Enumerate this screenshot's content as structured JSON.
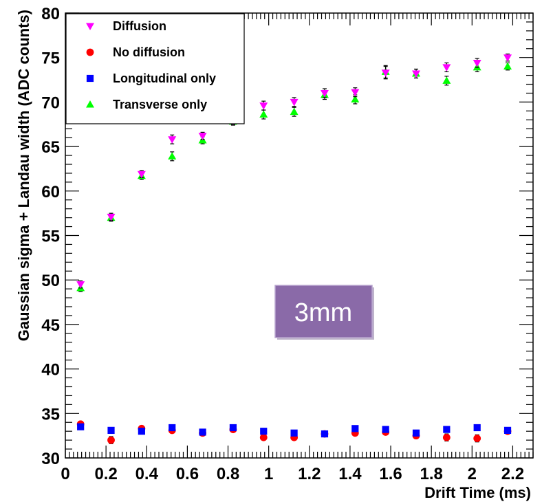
{
  "chart_data": {
    "type": "scatter",
    "xlabel": "Drift Time (ms)",
    "ylabel": "Gaussian sigma + Landau width (ADC counts)",
    "xlim": [
      0,
      2.3
    ],
    "ylim": [
      30,
      80
    ],
    "x_ticks": [
      "0",
      "0.2",
      "0.4",
      "0.6",
      "0.8",
      "1",
      "1.2",
      "1.4",
      "1.6",
      "1.8",
      "2",
      "2.2"
    ],
    "y_ticks": [
      "30",
      "35",
      "40",
      "45",
      "50",
      "55",
      "60",
      "65",
      "70",
      "75",
      "80"
    ],
    "grid": false,
    "legend_position": "top-left",
    "annotation": "3mm",
    "series": [
      {
        "name": "Diffusion",
        "marker": "triangle-down",
        "color": "#ff00ff",
        "points": [
          {
            "x": 0.075,
            "y": 49.5,
            "err": 0.4
          },
          {
            "x": 0.225,
            "y": 57.1,
            "err": 0.4
          },
          {
            "x": 0.375,
            "y": 61.9,
            "err": 0.4
          },
          {
            "x": 0.525,
            "y": 65.8,
            "err": 0.5
          },
          {
            "x": 0.675,
            "y": 66.2,
            "err": 0.4
          },
          {
            "x": 0.825,
            "y": 67.9,
            "err": 0.4
          },
          {
            "x": 0.975,
            "y": 69.6,
            "err": 0.5
          },
          {
            "x": 1.125,
            "y": 70.0,
            "err": 0.5
          },
          {
            "x": 1.275,
            "y": 71.0,
            "err": 0.5
          },
          {
            "x": 1.425,
            "y": 71.1,
            "err": 0.5
          },
          {
            "x": 1.575,
            "y": 73.3,
            "err": 0.7
          },
          {
            "x": 1.725,
            "y": 73.2,
            "err": 0.5
          },
          {
            "x": 1.875,
            "y": 73.9,
            "err": 0.5
          },
          {
            "x": 2.025,
            "y": 74.4,
            "err": 0.5
          },
          {
            "x": 2.175,
            "y": 75.0,
            "err": 0.4
          }
        ]
      },
      {
        "name": "No diffusion",
        "marker": "circle",
        "color": "#ff0000",
        "points": [
          {
            "x": 0.075,
            "y": 33.8,
            "err": 0.3
          },
          {
            "x": 0.225,
            "y": 32.0,
            "err": 0.4
          },
          {
            "x": 0.375,
            "y": 33.3,
            "err": 0.3
          },
          {
            "x": 0.525,
            "y": 33.1,
            "err": 0.3
          },
          {
            "x": 0.675,
            "y": 32.8,
            "err": 0.3
          },
          {
            "x": 0.825,
            "y": 33.2,
            "err": 0.3
          },
          {
            "x": 0.975,
            "y": 32.3,
            "err": 0.3
          },
          {
            "x": 1.125,
            "y": 32.3,
            "err": 0.3
          },
          {
            "x": 1.275,
            "y": 32.7,
            "err": 0.3
          },
          {
            "x": 1.425,
            "y": 32.8,
            "err": 0.3
          },
          {
            "x": 1.575,
            "y": 32.9,
            "err": 0.3
          },
          {
            "x": 1.725,
            "y": 32.5,
            "err": 0.3
          },
          {
            "x": 1.875,
            "y": 32.3,
            "err": 0.4
          },
          {
            "x": 2.025,
            "y": 32.2,
            "err": 0.4
          },
          {
            "x": 2.175,
            "y": 33.0,
            "err": 0.3
          }
        ]
      },
      {
        "name": "Longitudinal only",
        "marker": "square",
        "color": "#0000ff",
        "points": [
          {
            "x": 0.075,
            "y": 33.5,
            "err": 0.3
          },
          {
            "x": 0.225,
            "y": 33.1,
            "err": 0.3
          },
          {
            "x": 0.375,
            "y": 33.0,
            "err": 0.3
          },
          {
            "x": 0.525,
            "y": 33.4,
            "err": 0.3
          },
          {
            "x": 0.675,
            "y": 32.9,
            "err": 0.3
          },
          {
            "x": 0.825,
            "y": 33.4,
            "err": 0.3
          },
          {
            "x": 0.975,
            "y": 33.0,
            "err": 0.3
          },
          {
            "x": 1.125,
            "y": 32.8,
            "err": 0.3
          },
          {
            "x": 1.275,
            "y": 32.7,
            "err": 0.3
          },
          {
            "x": 1.425,
            "y": 33.3,
            "err": 0.3
          },
          {
            "x": 1.575,
            "y": 33.2,
            "err": 0.3
          },
          {
            "x": 1.725,
            "y": 32.8,
            "err": 0.3
          },
          {
            "x": 1.875,
            "y": 33.2,
            "err": 0.3
          },
          {
            "x": 2.025,
            "y": 33.4,
            "err": 0.3
          },
          {
            "x": 2.175,
            "y": 33.1,
            "err": 0.3
          }
        ]
      },
      {
        "name": "Transverse only",
        "marker": "triangle-up",
        "color": "#00ff00",
        "points": [
          {
            "x": 0.075,
            "y": 49.1,
            "err": 0.4
          },
          {
            "x": 0.225,
            "y": 57.0,
            "err": 0.4
          },
          {
            "x": 0.375,
            "y": 61.7,
            "err": 0.4
          },
          {
            "x": 0.525,
            "y": 63.9,
            "err": 0.5
          },
          {
            "x": 0.675,
            "y": 65.7,
            "err": 0.4
          },
          {
            "x": 0.825,
            "y": 67.8,
            "err": 0.4
          },
          {
            "x": 0.975,
            "y": 68.6,
            "err": 0.5
          },
          {
            "x": 1.125,
            "y": 68.9,
            "err": 0.5
          },
          {
            "x": 1.275,
            "y": 70.8,
            "err": 0.5
          },
          {
            "x": 1.425,
            "y": 70.3,
            "err": 0.5
          },
          {
            "x": 1.575,
            "y": 73.4,
            "err": 0.7
          },
          {
            "x": 1.725,
            "y": 73.2,
            "err": 0.5
          },
          {
            "x": 1.875,
            "y": 72.4,
            "err": 0.5
          },
          {
            "x": 2.025,
            "y": 73.9,
            "err": 0.5
          },
          {
            "x": 2.175,
            "y": 74.0,
            "err": 0.4
          }
        ]
      }
    ]
  }
}
